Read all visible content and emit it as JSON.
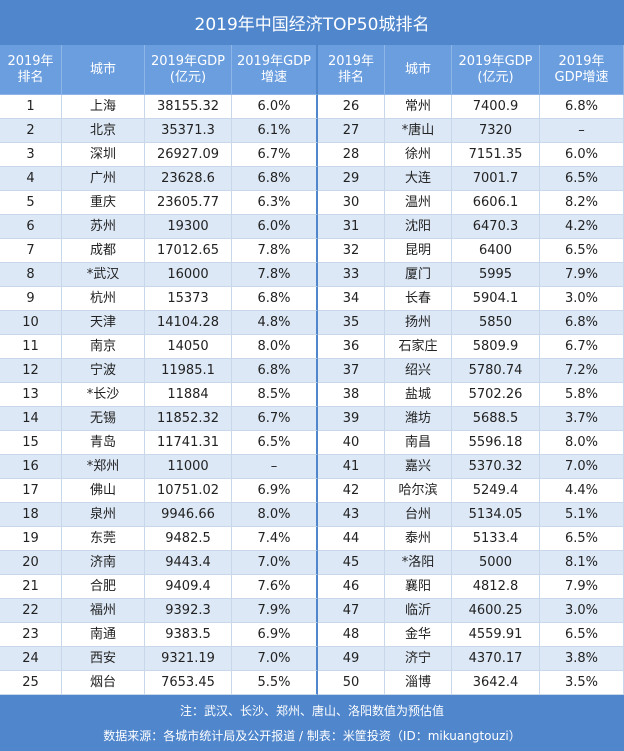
{
  "title": "2019年中国经济TOP50城排名",
  "header": {
    "cells": [
      "2019年\n排名",
      "城市",
      "2019年GDP\n(亿元)",
      "2019年GDP\n增速",
      "2019年\n排名",
      "城市",
      "2019年GDP\n(亿元)",
      "2019年\nGDP增速"
    ]
  },
  "table": {
    "rows": [
      [
        "1",
        "上海",
        "38155.32",
        "6.0%",
        "26",
        "常州",
        "7400.9",
        "6.8%"
      ],
      [
        "2",
        "北京",
        "35371.3",
        "6.1%",
        "27",
        "*唐山",
        "7320",
        "–"
      ],
      [
        "3",
        "深圳",
        "26927.09",
        "6.7%",
        "28",
        "徐州",
        "7151.35",
        "6.0%"
      ],
      [
        "4",
        "广州",
        "23628.6",
        "6.8%",
        "29",
        "大连",
        "7001.7",
        "6.5%"
      ],
      [
        "5",
        "重庆",
        "23605.77",
        "6.3%",
        "30",
        "温州",
        "6606.1",
        "8.2%"
      ],
      [
        "6",
        "苏州",
        "19300",
        "6.0%",
        "31",
        "沈阳",
        "6470.3",
        "4.2%"
      ],
      [
        "7",
        "成都",
        "17012.65",
        "7.8%",
        "32",
        "昆明",
        "6400",
        "6.5%"
      ],
      [
        "8",
        "*武汉",
        "16000",
        "7.8%",
        "33",
        "厦门",
        "5995",
        "7.9%"
      ],
      [
        "9",
        "杭州",
        "15373",
        "6.8%",
        "34",
        "长春",
        "5904.1",
        "3.0%"
      ],
      [
        "10",
        "天津",
        "14104.28",
        "4.8%",
        "35",
        "扬州",
        "5850",
        "6.8%"
      ],
      [
        "11",
        "南京",
        "14050",
        "8.0%",
        "36",
        "石家庄",
        "5809.9",
        "6.7%"
      ],
      [
        "12",
        "宁波",
        "11985.1",
        "6.8%",
        "37",
        "绍兴",
        "5780.74",
        "7.2%"
      ],
      [
        "13",
        "*长沙",
        "11884",
        "8.5%",
        "38",
        "盐城",
        "5702.26",
        "5.8%"
      ],
      [
        "14",
        "无锡",
        "11852.32",
        "6.7%",
        "39",
        "潍坊",
        "5688.5",
        "3.7%"
      ],
      [
        "15",
        "青岛",
        "11741.31",
        "6.5%",
        "40",
        "南昌",
        "5596.18",
        "8.0%"
      ],
      [
        "16",
        "*郑州",
        "11000",
        "–",
        "41",
        "嘉兴",
        "5370.32",
        "7.0%"
      ],
      [
        "17",
        "佛山",
        "10751.02",
        "6.9%",
        "42",
        "哈尔滨",
        "5249.4",
        "4.4%"
      ],
      [
        "18",
        "泉州",
        "9946.66",
        "8.0%",
        "43",
        "台州",
        "5134.05",
        "5.1%"
      ],
      [
        "19",
        "东莞",
        "9482.5",
        "7.4%",
        "44",
        "泰州",
        "5133.4",
        "6.5%"
      ],
      [
        "20",
        "济南",
        "9443.4",
        "7.0%",
        "45",
        "*洛阳",
        "5000",
        "8.1%"
      ],
      [
        "21",
        "合肥",
        "9409.4",
        "7.6%",
        "46",
        "襄阳",
        "4812.8",
        "7.9%"
      ],
      [
        "22",
        "福州",
        "9392.3",
        "7.9%",
        "47",
        "临沂",
        "4600.25",
        "3.0%"
      ],
      [
        "23",
        "南通",
        "9383.5",
        "6.9%",
        "48",
        "金华",
        "4559.91",
        "6.5%"
      ],
      [
        "24",
        "西安",
        "9321.19",
        "7.0%",
        "49",
        "济宁",
        "4370.17",
        "3.8%"
      ],
      [
        "25",
        "烟台",
        "7653.45",
        "5.5%",
        "50",
        "淄博",
        "3642.4",
        "3.5%"
      ]
    ]
  },
  "footer": {
    "note": "注：武汉、长沙、郑州、唐山、洛阳数值为预估值",
    "source": "数据来源：各城市统计局及公开报道 / 制表：米筐投资（ID：mikuangtouzi）"
  }
}
